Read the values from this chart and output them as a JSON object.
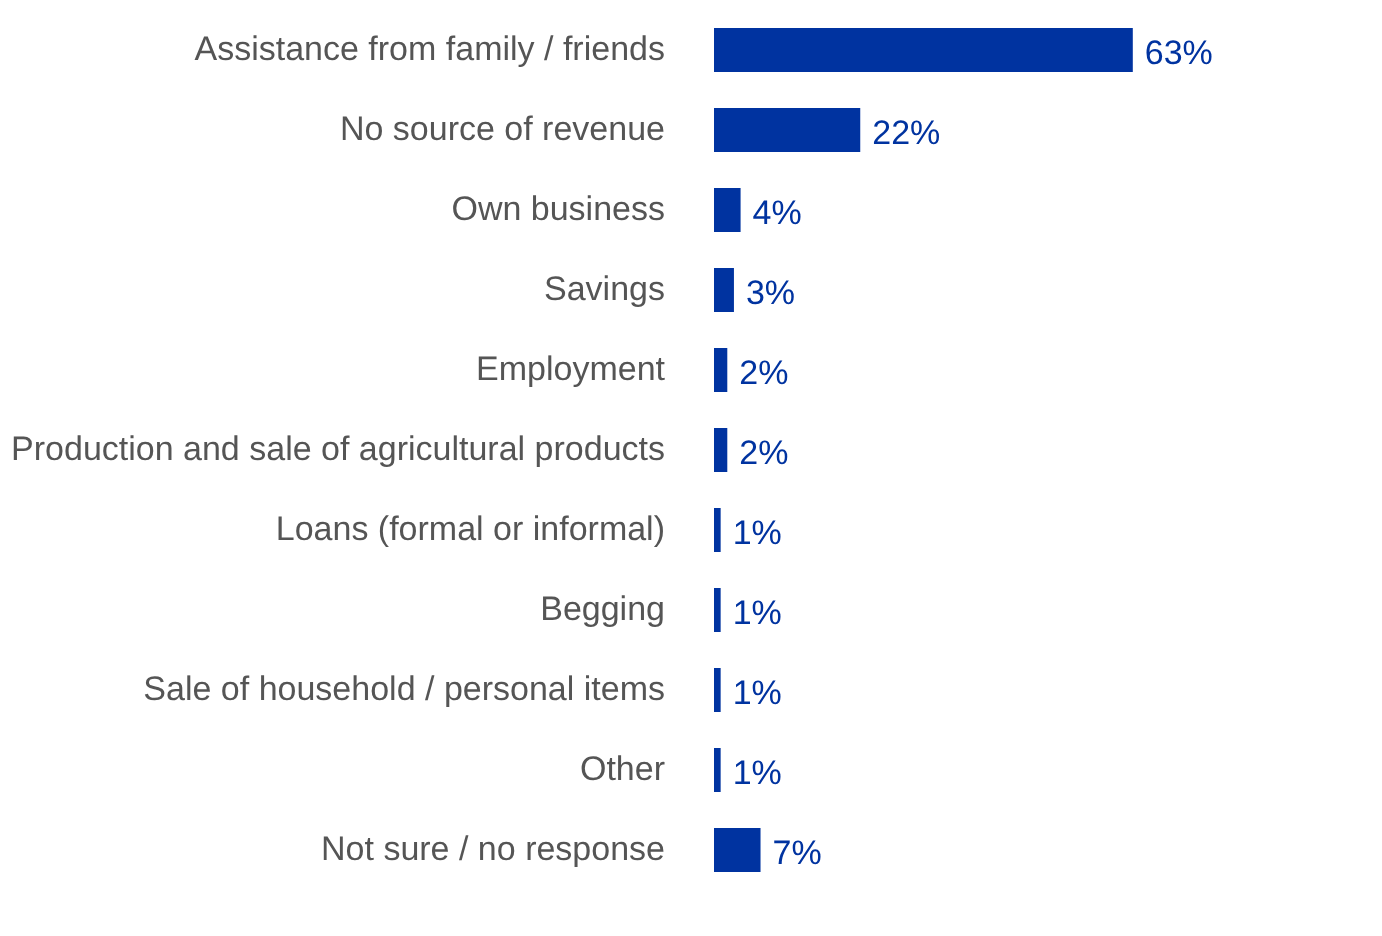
{
  "chart_data": {
    "type": "bar",
    "orientation": "horizontal",
    "categories": [
      "Assistance from family / friends",
      "No source of revenue",
      "Own business",
      "Savings",
      "Employment",
      "Production and sale of agricultural products",
      "Loans (formal or informal)",
      "Begging",
      "Sale of household / personal items",
      "Other",
      "Not sure / no response"
    ],
    "values": [
      63,
      22,
      4,
      3,
      2,
      2,
      1,
      1,
      1,
      1,
      7
    ],
    "value_labels": [
      "63%",
      "22%",
      "4%",
      "3%",
      "2%",
      "2%",
      "1%",
      "1%",
      "1%",
      "1%",
      "7%"
    ],
    "color": "#0033a0"
  }
}
